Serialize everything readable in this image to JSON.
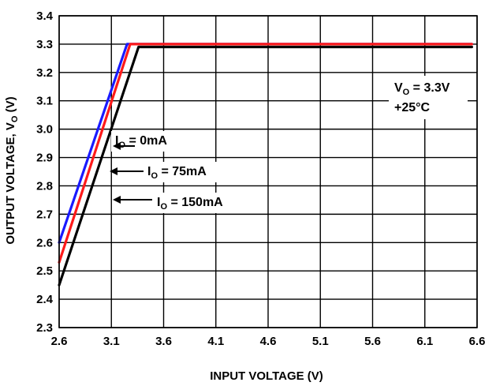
{
  "chart_data": {
    "type": "line",
    "title": "",
    "xlabel": "INPUT VOLTAGE (V)",
    "ylabel": {
      "prefix": "OUTPUT VOLTAGE, V",
      "subscript": "O",
      "suffix": " (V)"
    },
    "xlim": [
      2.6,
      6.6
    ],
    "ylim": [
      2.3,
      3.4
    ],
    "xticks": [
      "2.6",
      "3.1",
      "3.6",
      "4.1",
      "4.6",
      "5.1",
      "5.6",
      "6.1",
      "6.6"
    ],
    "yticks": [
      "2.3",
      "2.4",
      "2.5",
      "2.6",
      "2.7",
      "2.8",
      "2.9",
      "3.0",
      "3.1",
      "3.2",
      "3.3",
      "3.4"
    ],
    "grid": true,
    "series": [
      {
        "name": "I_O = 0mA",
        "color": "#1a1aff",
        "x": [
          2.6,
          3.25,
          6.55
        ],
        "y": [
          2.6,
          3.3,
          3.3
        ]
      },
      {
        "name": "I_O = 75mA",
        "color": "#ff1a1a",
        "x": [
          2.6,
          3.28,
          6.55
        ],
        "y": [
          2.53,
          3.3,
          3.3
        ]
      },
      {
        "name": "I_O = 150mA",
        "color": "#000000",
        "x": [
          2.6,
          3.36,
          6.55
        ],
        "y": [
          2.45,
          3.29,
          3.29
        ]
      }
    ],
    "annotations": [
      {
        "main": "I",
        "sub": "O",
        "rest": " = 0mA"
      },
      {
        "main": "I",
        "sub": "O",
        "rest": " = 75mA"
      },
      {
        "main": "I",
        "sub": "O",
        "rest": " = 150mA"
      },
      {
        "main": "V",
        "sub": "O",
        "rest": " = 3.3V",
        "line2": "+25°C"
      }
    ]
  }
}
